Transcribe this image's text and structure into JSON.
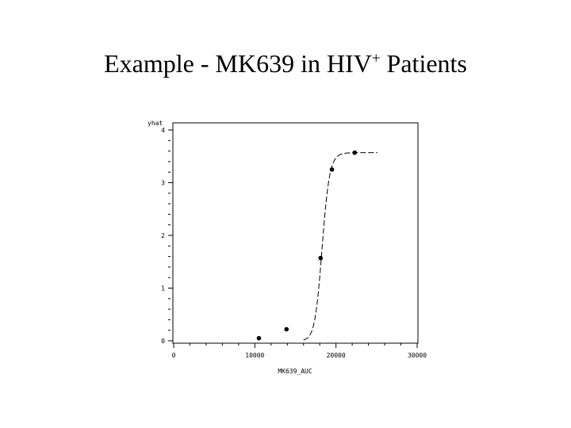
{
  "slide": {
    "title_main": "Example - MK639 in HIV",
    "title_sup": "+",
    "title_tail": " Patients"
  },
  "chart_data": {
    "type": "scatter",
    "xlabel": "MK639_AUC",
    "ylabel": "yhat",
    "xlim": [
      0,
      30000
    ],
    "ylim": [
      0,
      4
    ],
    "x_ticks": [
      "0",
      "10000",
      "20000",
      "30000"
    ],
    "y_ticks": [
      "0",
      "1",
      "2",
      "3",
      "4"
    ],
    "grid": false,
    "points": [
      {
        "x": 10500,
        "y": 0.05
      },
      {
        "x": 13900,
        "y": 0.22
      },
      {
        "x": 18100,
        "y": 1.57
      },
      {
        "x": 19500,
        "y": 3.25
      },
      {
        "x": 22300,
        "y": 3.57
      }
    ],
    "fit_curve": {
      "style": "dashed",
      "model": "Emax",
      "e0": 0,
      "emax": 3.57,
      "ec50": 18300,
      "hill": 40,
      "x_start": 16000,
      "x_end": 25100
    },
    "colors": {
      "foreground": "#000000",
      "background": "#ffffff"
    }
  }
}
